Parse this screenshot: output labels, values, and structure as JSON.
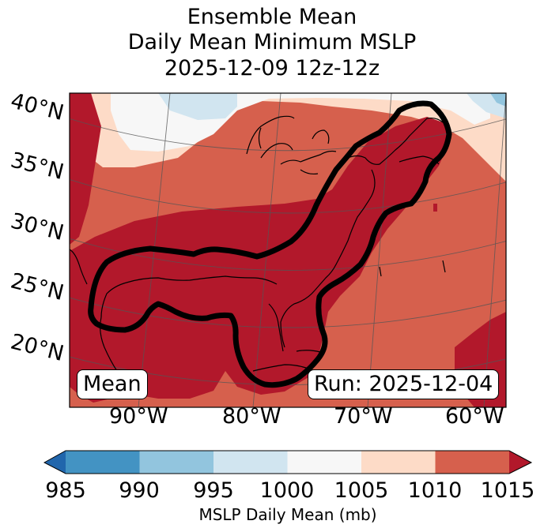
{
  "title": {
    "line1": "Ensemble Mean",
    "line2": "Daily Mean Minimum MSLP",
    "line3": "2025-12-09 12z-12z"
  },
  "map": {
    "lat_labels": [
      "40°N",
      "35°N",
      "30°N",
      "25°N",
      "20°N"
    ],
    "lon_labels": [
      "90°W",
      "80°W",
      "70°W",
      "60°W"
    ],
    "mean_box": "Mean",
    "run_box": "Run: 2025-12-04"
  },
  "colorbar": {
    "label": "MSLP Daily Mean (mb)",
    "ticks": [
      "985",
      "990",
      "995",
      "1000",
      "1005",
      "1010",
      "1015"
    ],
    "colors": [
      "#2166ac",
      "#4393c3",
      "#92c5de",
      "#d1e5f0",
      "#f7f7f7",
      "#fddbc7",
      "#d6604d",
      "#b2182b"
    ]
  },
  "colors": {
    "band_1015_plus": "#b2182b",
    "band_1010_1015": "#d6604d",
    "band_1005_1010": "#fddbc7",
    "band_1000_1005": "#f7f7f7",
    "band_995_1000": "#d1e5f0",
    "band_990_995": "#92c5de",
    "contour": "#000000"
  }
}
